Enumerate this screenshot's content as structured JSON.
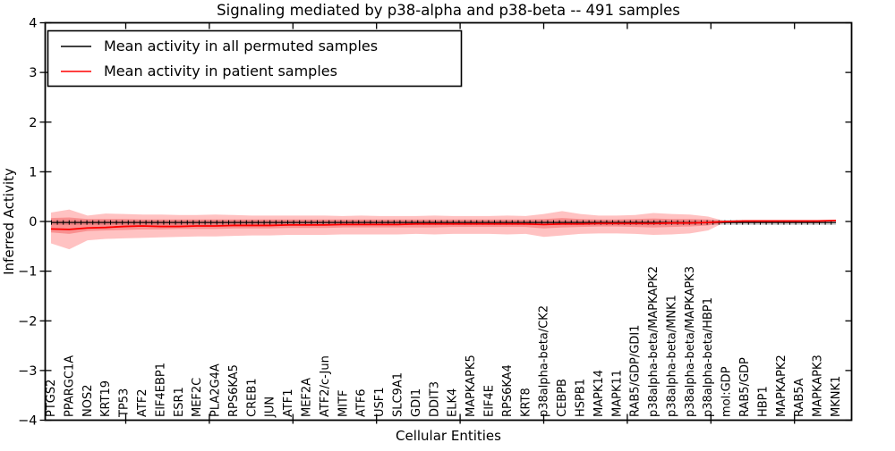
{
  "chart_data": {
    "type": "line",
    "title": "Signaling mediated by p38-alpha and p38-beta -- 491 samples",
    "xlabel": "Cellular Entities",
    "ylabel": "Inferred Activity",
    "ylim": [
      -4,
      4
    ],
    "ytick_values": [
      4,
      3,
      2,
      1,
      0,
      -1,
      -2,
      -3,
      -4
    ],
    "ytick_labels": [
      "4",
      "3",
      "2",
      "1",
      "0",
      "−1",
      "−2",
      "−3",
      "−4"
    ],
    "grid": false,
    "legend_position": "upper left",
    "categories": [
      "PTGS2",
      "PPARGC1A",
      "NOS2",
      "KRT19",
      "TP53",
      "ATF2",
      "EIF4EBP1",
      "ESR1",
      "MEF2C",
      "PLA2G4A",
      "RPS6KA5",
      "CREB1",
      "JUN",
      "ATF1",
      "MEF2A",
      "ATF2/c-Jun",
      "MITF",
      "ATF6",
      "USF1",
      "SLC9A1",
      "GDI1",
      "DDIT3",
      "ELK4",
      "MAPKAPK5",
      "EIF4E",
      "RPS6KA4",
      "KRT8",
      "p38alpha-beta/CK2",
      "CEBPB",
      "HSPB1",
      "MAPK14",
      "MAPK11",
      "RAB5/GDP/GDI1",
      "p38alpha-beta/MAPKAPK2",
      "p38alpha-beta/MNK1",
      "p38alpha-beta/MAPKAPK3",
      "p38alpha-beta/HBP1",
      "mol:GDP",
      "RAB5/GDP",
      "HBP1",
      "MAPKAPK2",
      "RAB5A",
      "MAPKAPK3",
      "MKNK1"
    ],
    "series": [
      {
        "name": "Mean activity in all permuted samples",
        "color": "#000000",
        "style": "solid-with-tick-dashes",
        "values": [
          -0.02,
          -0.02,
          -0.02,
          -0.02,
          -0.02,
          -0.02,
          -0.02,
          -0.02,
          -0.02,
          -0.02,
          -0.02,
          -0.02,
          -0.02,
          -0.02,
          -0.02,
          -0.02,
          -0.02,
          -0.02,
          -0.02,
          -0.02,
          -0.02,
          -0.02,
          -0.02,
          -0.02,
          -0.02,
          -0.02,
          -0.02,
          -0.02,
          -0.02,
          -0.02,
          -0.02,
          -0.02,
          -0.02,
          -0.02,
          -0.02,
          -0.02,
          -0.02,
          -0.02,
          -0.02,
          -0.02,
          -0.02,
          -0.02,
          -0.02,
          -0.02
        ]
      },
      {
        "name": "Mean activity in patient samples",
        "color": "#ff0000",
        "style": "solid",
        "values": [
          -0.15,
          -0.16,
          -0.13,
          -0.12,
          -0.1,
          -0.09,
          -0.1,
          -0.1,
          -0.09,
          -0.09,
          -0.08,
          -0.08,
          -0.08,
          -0.07,
          -0.07,
          -0.07,
          -0.06,
          -0.06,
          -0.06,
          -0.06,
          -0.05,
          -0.05,
          -0.05,
          -0.05,
          -0.05,
          -0.05,
          -0.05,
          -0.06,
          -0.05,
          -0.05,
          -0.04,
          -0.04,
          -0.04,
          -0.04,
          -0.03,
          -0.03,
          -0.02,
          0,
          0.01,
          0.01,
          0.01,
          0.01,
          0.01,
          0.02
        ]
      }
    ],
    "bands": [
      {
        "name": "permuted-samples-std",
        "color": "#cfcfcf",
        "opacity": 0.9,
        "upper_const": 0.03,
        "lower_const": -0.07
      },
      {
        "name": "patient-samples-outer",
        "color": "#ff5050",
        "opacity": 0.35,
        "upper": [
          0.18,
          0.24,
          0.12,
          0.16,
          0.15,
          0.14,
          0.14,
          0.13,
          0.13,
          0.14,
          0.13,
          0.12,
          0.12,
          0.12,
          0.12,
          0.12,
          0.11,
          0.12,
          0.11,
          0.11,
          0.11,
          0.12,
          0.11,
          0.11,
          0.11,
          0.12,
          0.11,
          0.15,
          0.21,
          0.15,
          0.12,
          0.12,
          0.13,
          0.17,
          0.15,
          0.14,
          0.1,
          0,
          0,
          0,
          0,
          0,
          0,
          0
        ],
        "lower": [
          -0.44,
          -0.56,
          -0.38,
          -0.35,
          -0.34,
          -0.33,
          -0.32,
          -0.31,
          -0.3,
          -0.3,
          -0.29,
          -0.28,
          -0.28,
          -0.27,
          -0.27,
          -0.27,
          -0.26,
          -0.26,
          -0.26,
          -0.26,
          -0.25,
          -0.26,
          -0.25,
          -0.25,
          -0.25,
          -0.26,
          -0.25,
          -0.31,
          -0.28,
          -0.25,
          -0.24,
          -0.24,
          -0.25,
          -0.27,
          -0.26,
          -0.24,
          -0.18,
          0,
          0,
          0,
          0,
          0,
          0,
          0
        ]
      },
      {
        "name": "patient-samples-inner",
        "color": "#f04040",
        "opacity": 0.38,
        "upper": [
          0.07,
          0.08,
          0.05,
          0.05,
          0.05,
          0.04,
          0.04,
          0.04,
          0.04,
          0.04,
          0.04,
          0.04,
          0.04,
          0.04,
          0.04,
          0.04,
          0.04,
          0.04,
          0.04,
          0.04,
          0.04,
          0.04,
          0.04,
          0.04,
          0.04,
          0.04,
          0.04,
          0.05,
          0.07,
          0.05,
          0.04,
          0.04,
          0.05,
          0.06,
          0.05,
          0.05,
          0.04,
          0,
          0,
          0,
          0,
          0,
          0,
          0
        ],
        "lower": [
          -0.22,
          -0.25,
          -0.19,
          -0.18,
          -0.17,
          -0.16,
          -0.16,
          -0.15,
          -0.15,
          -0.15,
          -0.14,
          -0.14,
          -0.14,
          -0.13,
          -0.13,
          -0.13,
          -0.12,
          -0.12,
          -0.12,
          -0.12,
          -0.12,
          -0.12,
          -0.11,
          -0.11,
          -0.11,
          -0.11,
          -0.11,
          -0.14,
          -0.12,
          -0.11,
          -0.1,
          -0.1,
          -0.11,
          -0.12,
          -0.11,
          -0.1,
          -0.08,
          0,
          0,
          0,
          0,
          0,
          0,
          0
        ]
      }
    ]
  }
}
